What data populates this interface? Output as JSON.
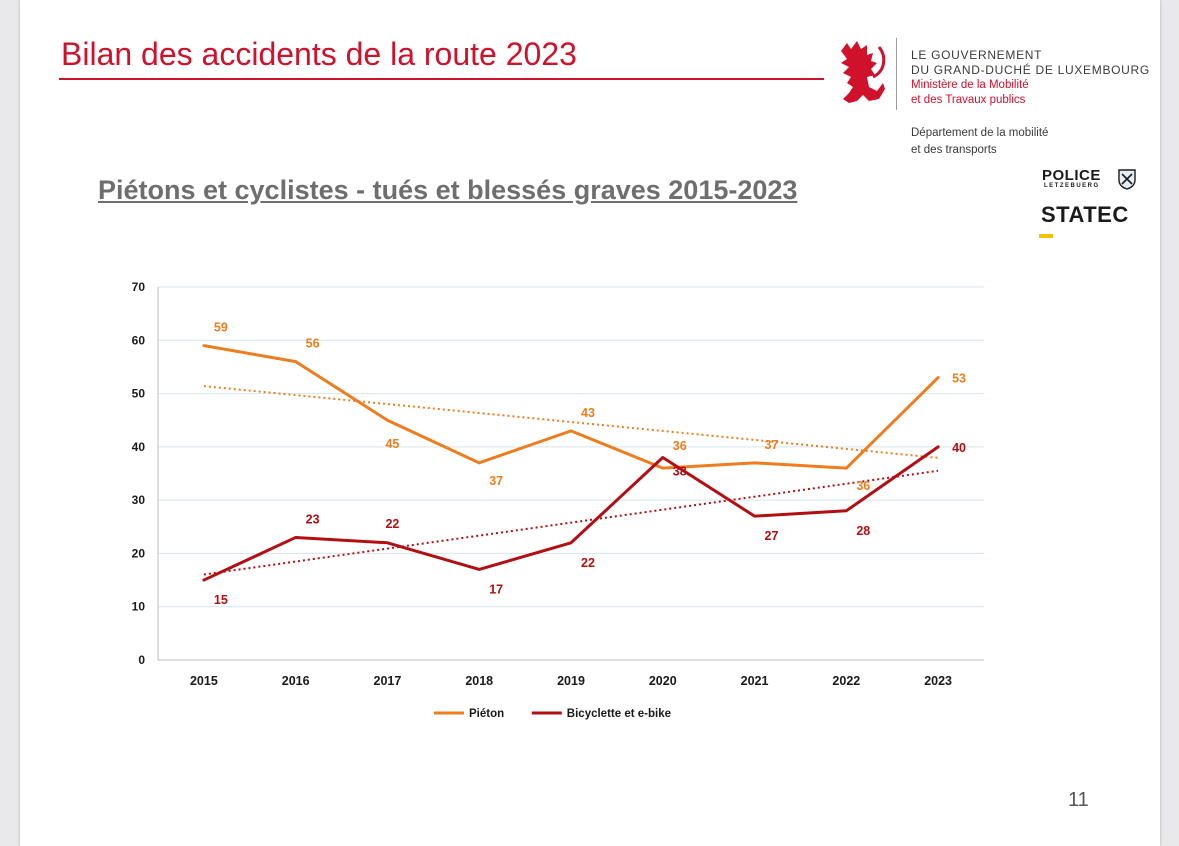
{
  "slide": {
    "title": "Bilan des accidents de la route 2023",
    "page_number": "11"
  },
  "header": {
    "government": {
      "line1": "LE GOUVERNEMENT",
      "line2": "DU GRAND-DUCHÉ DE LUXEMBOURG",
      "ministry_line1": "Ministère de la Mobilité",
      "ministry_line2": "et des Travaux publics"
    },
    "department": {
      "line1": "Département de la mobilité",
      "line2": "et des transports"
    },
    "logos": {
      "lion_icon": "red-lion-icon",
      "police_word": "POLICE",
      "police_sub": "LETZEBUERG",
      "police_icon": "police-crest-icon",
      "statec_word": "STATEC"
    }
  },
  "colors": {
    "brand_red": "#d0112b",
    "pieton": "#ed7d1e",
    "bicyclette": "#b30e12",
    "grid": "#d6e4ee",
    "axis_text": "#1a1a1a"
  },
  "chart_data": {
    "type": "line",
    "title": "Piétons et cyclistes - tués et blessés graves 2015-2023",
    "xlabel": "",
    "ylabel": "",
    "x": [
      "2015",
      "2016",
      "2017",
      "2018",
      "2019",
      "2020",
      "2021",
      "2022",
      "2023"
    ],
    "ylim": [
      0,
      70
    ],
    "yticks": [
      "0",
      "10",
      "20",
      "30",
      "40",
      "50",
      "60",
      "70"
    ],
    "grid": true,
    "legend_position": "bottom",
    "trendlines": true,
    "trendline_style": "dotted",
    "series": [
      {
        "name": "Piéton",
        "values": [
          59,
          56,
          45,
          37,
          43,
          36,
          37,
          36,
          53
        ],
        "color": "#ed7d1e"
      },
      {
        "name": "Bicyclette et e-bike",
        "values": [
          15,
          23,
          22,
          17,
          22,
          38,
          27,
          28,
          40
        ],
        "color": "#b30e12"
      }
    ]
  }
}
